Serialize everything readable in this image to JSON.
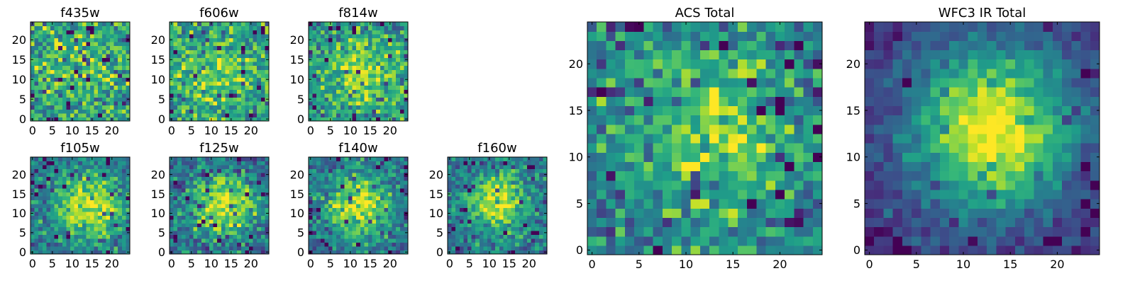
{
  "chart_data": [
    {
      "type": "heatmap",
      "title": "f435w",
      "xlim": [
        -0.5,
        24.5
      ],
      "ylim": [
        -0.5,
        24.5
      ],
      "xticks": [
        0,
        5,
        10,
        15,
        20
      ],
      "yticks": [
        0,
        5,
        10,
        15,
        20
      ],
      "grid_size": 25,
      "colormap": "viridis",
      "pattern": {
        "seed": 11,
        "peak": 0.15,
        "center": [
          12,
          12
        ],
        "width": 6,
        "noise": 1.0
      }
    },
    {
      "type": "heatmap",
      "title": "f606w",
      "xlim": [
        -0.5,
        24.5
      ],
      "ylim": [
        -0.5,
        24.5
      ],
      "xticks": [
        0,
        5,
        10,
        15,
        20
      ],
      "yticks": [
        0,
        5,
        10,
        15,
        20
      ],
      "grid_size": 25,
      "colormap": "viridis",
      "pattern": {
        "seed": 23,
        "peak": 0.2,
        "center": [
          12,
          12
        ],
        "width": 6,
        "noise": 1.0
      }
    },
    {
      "type": "heatmap",
      "title": "f814w",
      "xlim": [
        -0.5,
        24.5
      ],
      "ylim": [
        -0.5,
        24.5
      ],
      "xticks": [
        0,
        5,
        10,
        15,
        20
      ],
      "yticks": [
        0,
        5,
        10,
        15,
        20
      ],
      "grid_size": 25,
      "colormap": "viridis",
      "pattern": {
        "seed": 37,
        "peak": 0.35,
        "center": [
          13,
          12
        ],
        "width": 5,
        "noise": 1.0
      }
    },
    {
      "type": "heatmap",
      "title": "f105w",
      "xlim": [
        -0.5,
        24.5
      ],
      "ylim": [
        -0.5,
        24.5
      ],
      "xticks": [
        0,
        5,
        10,
        15,
        20
      ],
      "yticks": [
        0,
        5,
        10,
        15,
        20
      ],
      "grid_size": 25,
      "colormap": "viridis",
      "pattern": {
        "seed": 41,
        "peak": 0.6,
        "center": [
          14,
          12
        ],
        "width": 6,
        "noise": 0.9
      }
    },
    {
      "type": "heatmap",
      "title": "f125w",
      "xlim": [
        -0.5,
        24.5
      ],
      "ylim": [
        -0.5,
        24.5
      ],
      "xticks": [
        0,
        5,
        10,
        15,
        20
      ],
      "yticks": [
        0,
        5,
        10,
        15,
        20
      ],
      "grid_size": 25,
      "colormap": "viridis",
      "pattern": {
        "seed": 53,
        "peak": 0.6,
        "center": [
          13,
          12
        ],
        "width": 6,
        "noise": 0.9
      }
    },
    {
      "type": "heatmap",
      "title": "f140w",
      "xlim": [
        -0.5,
        24.5
      ],
      "ylim": [
        -0.5,
        24.5
      ],
      "xticks": [
        0,
        5,
        10,
        15,
        20
      ],
      "yticks": [
        0,
        5,
        10,
        15,
        20
      ],
      "grid_size": 25,
      "colormap": "viridis",
      "pattern": {
        "seed": 67,
        "peak": 0.65,
        "center": [
          12,
          12
        ],
        "width": 6,
        "noise": 0.9
      }
    },
    {
      "type": "heatmap",
      "title": "f160w",
      "xlim": [
        -0.5,
        24.5
      ],
      "ylim": [
        -0.5,
        24.5
      ],
      "xticks": [
        0,
        5,
        10,
        15,
        20
      ],
      "yticks": [
        0,
        5,
        10,
        15,
        20
      ],
      "grid_size": 25,
      "colormap": "viridis",
      "pattern": {
        "seed": 79,
        "peak": 0.65,
        "center": [
          12,
          13
        ],
        "width": 5,
        "noise": 0.9
      }
    },
    {
      "type": "heatmap",
      "title": "ACS Total",
      "xlim": [
        -0.5,
        24.5
      ],
      "ylim": [
        -0.5,
        24.5
      ],
      "xticks": [
        0,
        5,
        10,
        15,
        20
      ],
      "yticks": [
        0,
        5,
        10,
        15,
        20
      ],
      "grid_size": 25,
      "colormap": "viridis",
      "pattern": {
        "seed": 91,
        "peak": 0.3,
        "center": [
          13,
          13
        ],
        "width": 6,
        "noise": 0.75
      }
    },
    {
      "type": "heatmap",
      "title": "WFC3 IR Total",
      "xlim": [
        -0.5,
        24.5
      ],
      "ylim": [
        -0.5,
        24.5
      ],
      "xticks": [
        0,
        5,
        10,
        15,
        20
      ],
      "yticks": [
        0,
        5,
        10,
        15,
        20
      ],
      "grid_size": 25,
      "colormap": "viridis",
      "pattern": {
        "seed": 103,
        "peak": 0.9,
        "center": [
          13,
          13
        ],
        "width": 6,
        "noise": 0.45
      }
    }
  ]
}
